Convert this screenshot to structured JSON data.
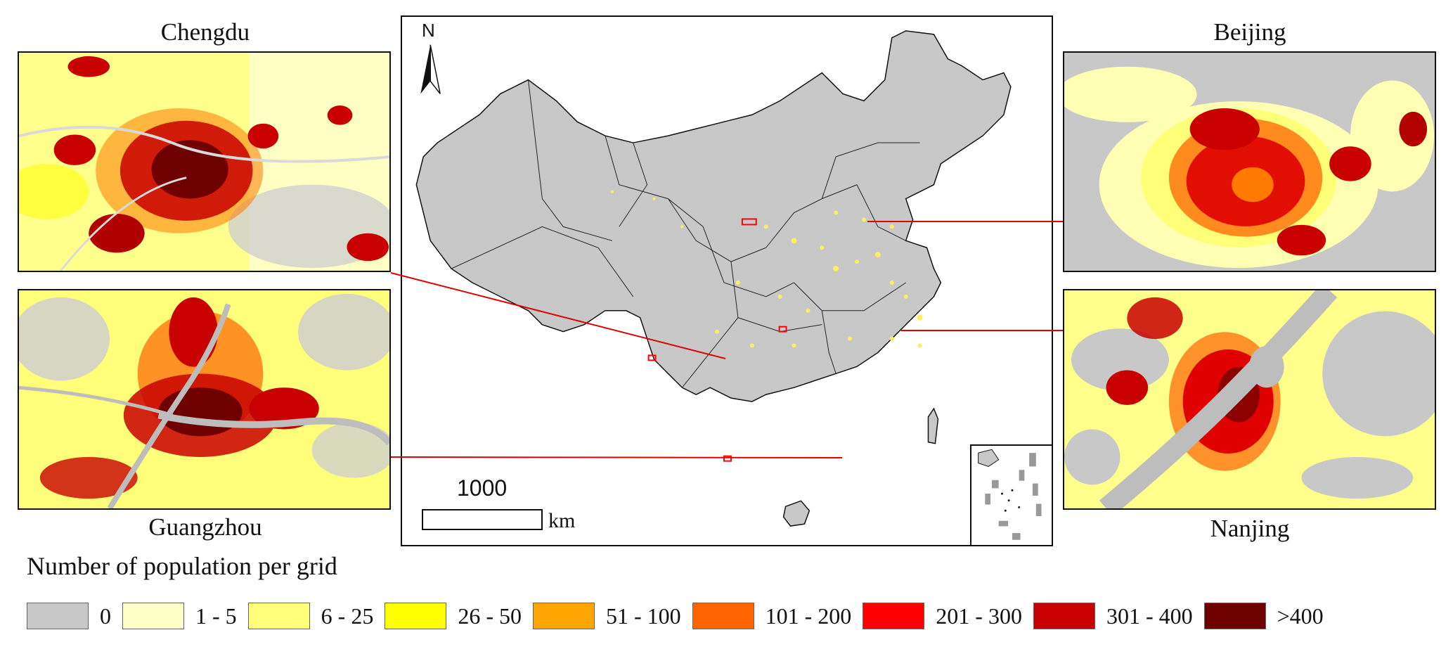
{
  "panels": {
    "chengdu": "Chengdu",
    "guangzhou": "Guangzhou",
    "beijing": "Beijing",
    "nanjing": "Nanjing"
  },
  "map": {
    "north": "N",
    "scale_value": "1000",
    "scale_unit": "km"
  },
  "legend": {
    "title": "Number of population per grid",
    "items": [
      {
        "label": "0",
        "color": "#c8c8c8"
      },
      {
        "label": "1 - 5",
        "color": "#ffffc8"
      },
      {
        "label": "6 - 25",
        "color": "#ffff78"
      },
      {
        "label": "26 - 50",
        "color": "#ffff00"
      },
      {
        "label": "51 - 100",
        "color": "#ffa500"
      },
      {
        "label": "101 - 200",
        "color": "#ff6400"
      },
      {
        "label": "201 - 300",
        "color": "#ff0000"
      },
      {
        "label": "301 - 400",
        "color": "#c80000"
      },
      {
        "label": ">400",
        "color": "#6e0000"
      }
    ]
  }
}
